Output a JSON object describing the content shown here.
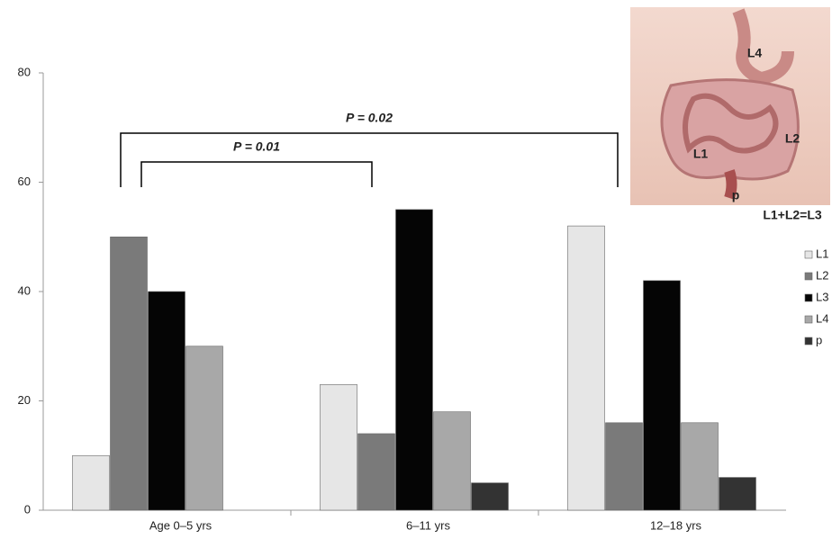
{
  "chart_data": {
    "type": "bar",
    "categories": [
      "Age 0–5 yrs",
      "6–11 yrs",
      "12–18 yrs"
    ],
    "series": [
      {
        "name": "L1",
        "color": "#e6e6e6",
        "values": [
          10,
          23,
          52
        ]
      },
      {
        "name": "L2",
        "color": "#7a7a7a",
        "values": [
          50,
          14,
          16
        ]
      },
      {
        "name": "L3",
        "color": "#050505",
        "values": [
          40,
          55,
          42
        ]
      },
      {
        "name": "L4",
        "color": "#a8a8a8",
        "values": [
          30,
          18,
          16
        ]
      },
      {
        "name": "p",
        "color": "#333333",
        "values": [
          0,
          5,
          6
        ]
      }
    ],
    "ylim": [
      0,
      80
    ],
    "yticks": [
      0,
      20,
      40,
      60,
      80
    ],
    "grid": false,
    "legend": "right",
    "annotations": [
      "P = 0.02",
      "P = 0.01",
      "L1+L2=L3"
    ],
    "image_labels": [
      "L4",
      "L2",
      "L1",
      "p"
    ]
  }
}
